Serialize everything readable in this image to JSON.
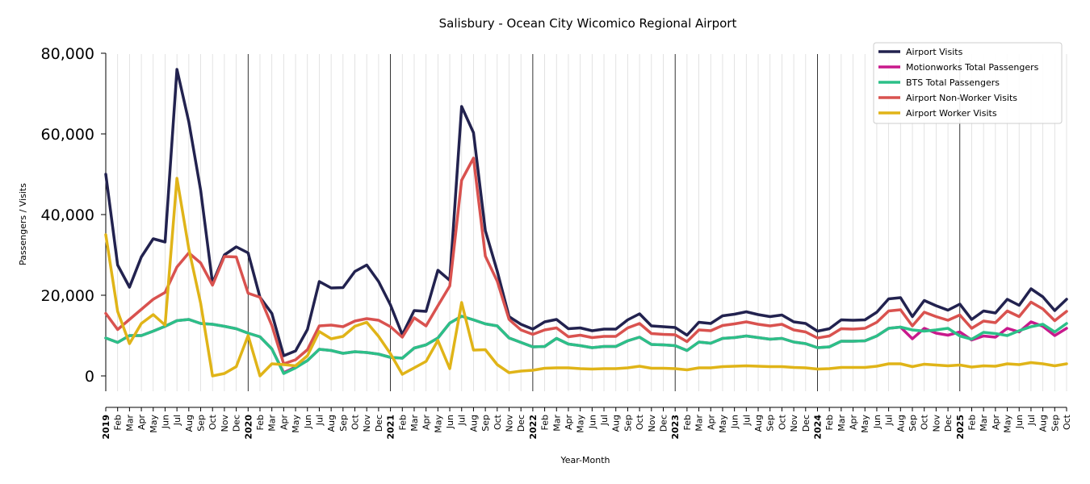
{
  "chart_data": {
    "type": "line",
    "title": "Salisbury - Ocean City Wicomico Regional Airport",
    "xlabel": "Year-Month",
    "ylabel": "Passengers / Visits",
    "ylim": [
      -4000,
      80000
    ],
    "yticks": [
      0,
      20000,
      40000,
      60000,
      80000
    ],
    "ytick_labels": [
      "0",
      "20,000",
      "40,000",
      "60,000",
      "80,000"
    ],
    "grid": "vertical monthly lines; dark lines at each January",
    "legend_position": "top-right",
    "x": [
      "2019-01",
      "2019-02",
      "2019-03",
      "2019-04",
      "2019-05",
      "2019-06",
      "2019-07",
      "2019-08",
      "2019-09",
      "2019-10",
      "2019-11",
      "2019-12",
      "2020-01",
      "2020-02",
      "2020-03",
      "2020-04",
      "2020-05",
      "2020-06",
      "2020-07",
      "2020-08",
      "2020-09",
      "2020-10",
      "2020-11",
      "2020-12",
      "2021-01",
      "2021-02",
      "2021-03",
      "2021-04",
      "2021-05",
      "2021-06",
      "2021-07",
      "2021-08",
      "2021-09",
      "2021-10",
      "2021-11",
      "2021-12",
      "2022-01",
      "2022-02",
      "2022-03",
      "2022-04",
      "2022-05",
      "2022-06",
      "2022-07",
      "2022-08",
      "2022-09",
      "2022-10",
      "2022-11",
      "2022-12",
      "2023-01",
      "2023-02",
      "2023-03",
      "2023-04",
      "2023-05",
      "2023-06",
      "2023-07",
      "2023-08",
      "2023-09",
      "2023-10",
      "2023-11",
      "2023-12",
      "2024-01",
      "2024-02",
      "2024-03",
      "2024-04",
      "2024-05",
      "2024-06",
      "2024-07",
      "2024-08",
      "2024-09",
      "2024-10",
      "2024-11",
      "2024-12",
      "2025-01",
      "2025-02",
      "2025-03",
      "2025-04",
      "2025-05",
      "2025-06",
      "2025-07",
      "2025-08",
      "2025-09",
      "2025-10"
    ],
    "x_tick_labels": [
      "2019",
      "Feb",
      "Mar",
      "Apr",
      "May",
      "Jun",
      "Jul",
      "Aug",
      "Sep",
      "Oct",
      "Nov",
      "Dec",
      "2020",
      "Feb",
      "Mar",
      "Apr",
      "May",
      "Jun",
      "Jul",
      "Aug",
      "Sep",
      "Oct",
      "Nov",
      "Dec",
      "2021",
      "Feb",
      "Mar",
      "Apr",
      "May",
      "Jun",
      "Jul",
      "Aug",
      "Sep",
      "Oct",
      "Nov",
      "Dec",
      "2022",
      "Feb",
      "Mar",
      "Apr",
      "May",
      "Jun",
      "Jul",
      "Aug",
      "Sep",
      "Oct",
      "Nov",
      "Dec",
      "2023",
      "Feb",
      "Mar",
      "Apr",
      "May",
      "Jun",
      "Jul",
      "Aug",
      "Sep",
      "Oct",
      "Nov",
      "Dec",
      "2024",
      "Feb",
      "Mar",
      "Apr",
      "May",
      "Jun",
      "Jul",
      "Aug",
      "Sep",
      "Oct",
      "Nov",
      "Dec",
      "2025",
      "Feb",
      "Mar",
      "Apr",
      "May",
      "Jun",
      "Jul",
      "Aug",
      "Sep",
      "Oct"
    ],
    "series": [
      {
        "name": "Airport Visits",
        "color": "#22224f",
        "values": [
          50000,
          27500,
          22000,
          29500,
          34000,
          33200,
          76000,
          63000,
          46000,
          23000,
          30000,
          32000,
          30500,
          19500,
          15500,
          5000,
          6200,
          11500,
          23400,
          21800,
          21900,
          25900,
          27500,
          23400,
          17600,
          10200,
          16200,
          16000,
          26200,
          23700,
          66800,
          60300,
          36000,
          26000,
          14700,
          12800,
          11600,
          13400,
          14000,
          11700,
          11900,
          11200,
          11600,
          11600,
          13900,
          15400,
          12400,
          12200,
          12000,
          10100,
          13300,
          13000,
          14900,
          15300,
          15900,
          15200,
          14700,
          15100,
          13400,
          13000,
          11100,
          11700,
          13900,
          13800,
          13900,
          15800,
          19100,
          19400,
          14700,
          18700,
          17400,
          16300,
          17800,
          14000,
          16100,
          15600,
          19000,
          17500,
          21600,
          19600,
          16200,
          19000
        ]
      },
      {
        "name": "Motionworks Total Passengers",
        "color": "#c8198c",
        "values": [
          9400,
          8300,
          10000,
          10000,
          11100,
          12300,
          13700,
          14000,
          13000,
          12800,
          12300,
          11700,
          10600,
          9700,
          6700,
          800,
          2200,
          3800,
          6600,
          6300,
          5600,
          6000,
          5800,
          5400,
          4600,
          4400,
          6900,
          7700,
          9400,
          13100,
          14800,
          13900,
          12900,
          12400,
          9400,
          8300,
          7200,
          7300,
          9300,
          7900,
          7500,
          7000,
          7300,
          7300,
          8700,
          9600,
          7800,
          7700,
          7500,
          6300,
          8400,
          8100,
          9300,
          9500,
          9900,
          9500,
          9100,
          9300,
          8400,
          8000,
          7000,
          7200,
          8600,
          8600,
          8700,
          9900,
          11800,
          12100,
          9200,
          11800,
          10600,
          10100,
          10900,
          8900,
          9900,
          9600,
          11800,
          10900,
          13400,
          12300,
          10000,
          11800
        ]
      },
      {
        "name": "BTS Total Passengers",
        "color": "#2cc088",
        "values": [
          9400,
          8300,
          10000,
          10000,
          11100,
          12300,
          13700,
          14000,
          13000,
          12800,
          12300,
          11700,
          10600,
          9700,
          6700,
          600,
          2000,
          3800,
          6600,
          6300,
          5600,
          6000,
          5800,
          5400,
          4600,
          4400,
          6900,
          7700,
          9400,
          13100,
          14800,
          13900,
          12900,
          12400,
          9400,
          8300,
          7200,
          7300,
          9300,
          7900,
          7500,
          7000,
          7300,
          7300,
          8700,
          9600,
          7800,
          7700,
          7500,
          6300,
          8400,
          8100,
          9300,
          9500,
          9900,
          9500,
          9100,
          9300,
          8400,
          8000,
          7000,
          7200,
          8600,
          8600,
          8700,
          9900,
          11800,
          12100,
          11400,
          11100,
          11400,
          11800,
          9900,
          9100,
          10800,
          10500,
          10000,
          11200,
          12200,
          12800,
          10900,
          13000
        ]
      },
      {
        "name": "Airport Non-Worker Visits",
        "color": "#d9524f",
        "values": [
          15500,
          11500,
          14000,
          16500,
          19000,
          20700,
          27000,
          30500,
          28000,
          22500,
          29600,
          29500,
          20500,
          19500,
          12500,
          3000,
          4000,
          6500,
          12400,
          12600,
          12200,
          13600,
          14200,
          13800,
          12200,
          9600,
          14400,
          12400,
          17400,
          22300,
          48500,
          54000,
          29700,
          23500,
          14000,
          11400,
          10300,
          11400,
          11900,
          9700,
          10100,
          9500,
          9800,
          9800,
          11900,
          13000,
          10500,
          10300,
          10200,
          8500,
          11400,
          11200,
          12500,
          12900,
          13400,
          12800,
          12400,
          12800,
          11400,
          10900,
          9400,
          9900,
          11700,
          11600,
          11800,
          13300,
          16100,
          16400,
          12400,
          15800,
          14700,
          13800,
          15100,
          11800,
          13600,
          13200,
          16100,
          14700,
          18300,
          16600,
          13700,
          16000
        ]
      },
      {
        "name": "Airport Worker Visits",
        "color": "#e0b418",
        "values": [
          35000,
          16000,
          8000,
          13000,
          15200,
          12600,
          49000,
          31500,
          18000,
          0,
          600,
          2300,
          10000,
          0,
          3000,
          2800,
          2500,
          5000,
          11000,
          9200,
          9800,
          12300,
          13300,
          9800,
          5500,
          400,
          2000,
          3600,
          8800,
          1800,
          18200,
          6400,
          6500,
          2800,
          800,
          1200,
          1400,
          1900,
          2000,
          2000,
          1800,
          1700,
          1800,
          1800,
          2000,
          2400,
          1900,
          1900,
          1800,
          1500,
          2000,
          2000,
          2300,
          2400,
          2500,
          2400,
          2300,
          2300,
          2100,
          2000,
          1700,
          1800,
          2100,
          2100,
          2100,
          2400,
          3000,
          3000,
          2300,
          2900,
          2700,
          2500,
          2700,
          2200,
          2500,
          2400,
          3000,
          2800,
          3300,
          3000,
          2500,
          3000
        ]
      }
    ]
  }
}
